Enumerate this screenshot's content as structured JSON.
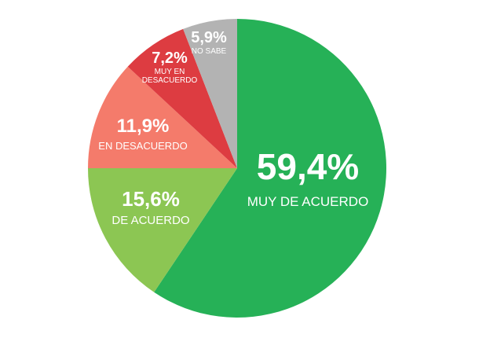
{
  "chart_data": {
    "type": "pie",
    "title": "",
    "start_angle_deg": 0,
    "direction": "clockwise",
    "slices": [
      {
        "value": 59.4,
        "value_label": "59,4%",
        "label_lines": [
          "MUY DE ACUERDO"
        ],
        "color": "#26b157"
      },
      {
        "value": 15.6,
        "value_label": "15,6%",
        "label_lines": [
          "DE ACUERDO"
        ],
        "color": "#8cc653"
      },
      {
        "value": 11.9,
        "value_label": "11,9%",
        "label_lines": [
          "EN DESACUERDO"
        ],
        "color": "#f47b6b"
      },
      {
        "value": 7.2,
        "value_label": "7,2%",
        "label_lines": [
          "MUY EN",
          "DESACUERDO"
        ],
        "color": "#dd3c41"
      },
      {
        "value": 5.9,
        "value_label": "5,9%",
        "label_lines": [
          "NO SABE"
        ],
        "color": "#b3b3b3"
      }
    ]
  }
}
